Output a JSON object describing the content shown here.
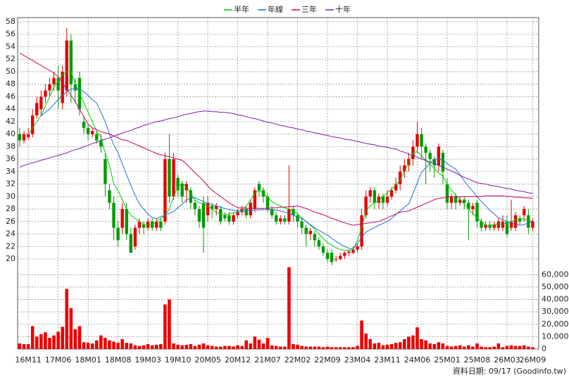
{
  "chart_data": {
    "type": "candlestick",
    "grid": true,
    "categories": [
      null,
      null,
      "16M11",
      null,
      null,
      null,
      null,
      null,
      null,
      "17M06",
      null,
      null,
      null,
      null,
      null,
      null,
      "18M01",
      null,
      null,
      null,
      null,
      null,
      null,
      "18M08",
      null,
      null,
      null,
      null,
      null,
      null,
      "19M03",
      null,
      null,
      null,
      null,
      null,
      null,
      "19M10",
      null,
      null,
      null,
      null,
      null,
      null,
      "20M05",
      null,
      null,
      null,
      null,
      null,
      null,
      "20M12",
      null,
      null,
      null,
      null,
      null,
      null,
      "21M07",
      null,
      null,
      null,
      null,
      null,
      null,
      "22M02",
      null,
      null,
      null,
      null,
      null,
      null,
      "22M09",
      null,
      null,
      null,
      null,
      null,
      null,
      "23M04",
      null,
      null,
      null,
      null,
      null,
      null,
      "23M11",
      null,
      null,
      null,
      null,
      null,
      null,
      "24M06",
      null,
      null,
      null,
      null,
      null,
      null,
      "25M01",
      null,
      null,
      null,
      null,
      null,
      null,
      "25M08",
      null,
      null,
      null,
      null,
      null,
      null,
      "26M03",
      null,
      null,
      null,
      null,
      null,
      "26M09"
    ],
    "up_color": "#e60000",
    "down_color": "#009a00",
    "open": [
      40,
      39,
      39.5,
      40,
      43,
      44,
      46,
      47,
      48,
      49,
      45,
      47,
      55,
      48,
      49,
      42,
      41,
      40,
      40,
      39,
      36,
      31,
      29,
      25,
      25,
      28,
      24,
      22,
      25,
      25.5,
      25,
      26,
      25,
      26,
      26,
      36,
      30,
      33,
      32,
      31,
      31,
      29,
      28,
      29,
      27,
      28.5,
      28,
      28,
      27,
      27,
      26,
      27,
      27.5,
      28,
      27,
      28,
      32,
      31,
      30,
      28,
      27,
      26,
      26.5,
      26,
      28,
      27,
      26,
      25,
      24,
      24,
      23,
      22,
      21,
      21,
      20,
      20,
      20.5,
      21,
      21,
      21.5,
      22,
      27,
      30,
      31,
      29,
      30,
      29,
      30,
      31,
      32,
      34,
      35,
      36,
      38,
      40,
      38,
      37,
      36,
      35,
      37,
      32,
      29,
      30,
      29,
      29.5,
      29,
      28,
      29,
      26,
      25,
      25.5,
      25,
      25,
      25,
      26,
      25,
      25,
      26.5,
      27,
      27,
      25
    ],
    "high": [
      41,
      40.5,
      41,
      44,
      46,
      47,
      48,
      49,
      50,
      51,
      51,
      57,
      56,
      49,
      50,
      43,
      41.5,
      41,
      40.5,
      40,
      37,
      32,
      30,
      26,
      29,
      29,
      25,
      25.5,
      26.5,
      26,
      26.5,
      26.5,
      26.5,
      26.5,
      37,
      40,
      37,
      33.5,
      32.5,
      32.5,
      31.5,
      29.5,
      28.5,
      30,
      30,
      29,
      29,
      28.5,
      27.5,
      27.5,
      27.5,
      28,
      28.5,
      28.5,
      29.5,
      31.5,
      32.5,
      31.5,
      30.5,
      28.5,
      27.5,
      27,
      27,
      35,
      28.5,
      27.5,
      26.5,
      25.5,
      25,
      24.5,
      23.5,
      22.5,
      21.5,
      21.5,
      20.5,
      21,
      21.2,
      21.5,
      22,
      22.5,
      28,
      31,
      31.5,
      31.5,
      30.5,
      30.5,
      31,
      31.5,
      33,
      35,
      36,
      37,
      39,
      42,
      41,
      38.5,
      37.5,
      36.5,
      38.5,
      37.5,
      33,
      30.5,
      30.5,
      30,
      30,
      29.5,
      29,
      29.5,
      26.5,
      26,
      26,
      26,
      26.5,
      27,
      27,
      29.5,
      27.5,
      27,
      28.5,
      28,
      26.5
    ],
    "low": [
      38,
      38.5,
      39,
      39.5,
      42.5,
      43,
      45,
      46,
      47,
      44,
      44,
      46,
      45,
      45,
      43,
      40,
      39,
      39.5,
      38.5,
      37,
      30,
      28,
      23,
      22,
      24,
      23,
      21,
      21.5,
      24,
      24,
      24.5,
      24.5,
      24.5,
      24.5,
      25.5,
      29,
      29.5,
      30,
      29,
      29,
      28,
      27,
      25,
      21,
      26,
      26.5,
      27,
      25.5,
      26,
      25.5,
      25.5,
      26.5,
      27,
      26.5,
      26.5,
      27.5,
      30,
      29,
      27.5,
      26.5,
      25.5,
      25.5,
      25.5,
      25.5,
      26,
      25,
      24,
      22,
      23,
      22,
      21.5,
      20.5,
      19.5,
      19,
      19.5,
      19.8,
      20,
      20.5,
      20.8,
      21,
      21.5,
      26.5,
      29,
      28,
      28,
      28,
      28.5,
      29.5,
      30.5,
      31,
      33,
      34,
      35,
      37,
      36,
      32,
      34,
      33,
      34,
      32,
      28,
      28,
      28,
      28.5,
      28,
      23,
      27,
      25,
      24.5,
      24.5,
      24.5,
      24.5,
      24.5,
      24.5,
      23.5,
      24.5,
      24.5,
      25.5,
      26,
      24,
      24.5
    ],
    "close": [
      39,
      40,
      40,
      43,
      45,
      46,
      47,
      48,
      49,
      47,
      50,
      55,
      48,
      47,
      44,
      41,
      40,
      40.5,
      39,
      38,
      32,
      29,
      25,
      23,
      28,
      24,
      21,
      25,
      26,
      25,
      26,
      25,
      26,
      25,
      36,
      30,
      36,
      31,
      30,
      32,
      29,
      28,
      26,
      25,
      29,
      28,
      28.5,
      26,
      26.5,
      26,
      27,
      27.5,
      28,
      27,
      29,
      31,
      31,
      30,
      28,
      27,
      26,
      26.5,
      26,
      28,
      27,
      26,
      25,
      24,
      24.5,
      23,
      22,
      21,
      20,
      19.5,
      20,
      20.5,
      21,
      21.2,
      21.5,
      22,
      27,
      30,
      31,
      29,
      30,
      29,
      30,
      31,
      32,
      34,
      35,
      36,
      38,
      40,
      38,
      37,
      36,
      35,
      38,
      34,
      29,
      30,
      29,
      29.5,
      29,
      28,
      28.5,
      26,
      25,
      25.5,
      25,
      25.5,
      26,
      26,
      24,
      26,
      27,
      26,
      28,
      25,
      26
    ],
    "ylim": [
      20,
      58
    ],
    "yticks": [
      20,
      22,
      24,
      26,
      28,
      30,
      32,
      34,
      36,
      38,
      40,
      42,
      44,
      46,
      48,
      50,
      52,
      54,
      56,
      58
    ],
    "series": [
      {
        "name": "半年",
        "color": "#00cc00",
        "values": [
          null,
          null,
          40,
          41,
          42,
          43,
          44.5,
          46,
          47.5,
          48.5,
          49.5,
          50,
          50,
          48,
          46.5,
          45,
          43.5,
          42,
          40.5,
          39.5,
          37,
          35,
          32,
          31,
          29.5,
          28,
          27,
          26.5,
          26,
          25.5,
          25.5,
          25.5,
          26,
          26.5,
          27,
          28,
          30,
          31.5,
          32.2,
          31.5,
          30.5,
          29.5,
          29,
          28.8,
          28.5,
          28,
          27.5,
          27.2,
          27.1,
          27.2,
          27.4,
          27.6,
          27.7,
          28.5,
          29.5,
          30.5,
          31,
          30.5,
          29.8,
          29.2,
          28.8,
          28.5,
          28.2,
          28,
          27.7,
          27.2,
          26.6,
          26,
          25.4,
          24.8,
          24,
          23.3,
          22.6,
          22.2,
          21.8,
          21.5,
          21.4,
          21.4,
          21.5,
          23,
          25,
          27.7,
          28.5,
          29,
          29.4,
          30,
          30.6,
          31.2,
          31.8,
          32.7,
          34,
          35.5,
          37,
          37.2,
          36.5,
          35.8,
          35.2,
          34.5,
          33.8,
          33.3,
          32,
          31,
          30.2,
          29.5,
          28.8,
          28,
          27.3,
          26.6,
          26,
          25.4,
          25.4,
          25.5,
          25.6,
          25.6,
          25.8,
          26,
          26.3,
          26.5,
          26.4,
          26.2,
          26
        ]
      },
      {
        "name": "年線",
        "color": "#1e6fe0",
        "values": [
          null,
          null,
          null,
          null,
          null,
          42.9,
          43.5,
          44,
          44.8,
          45.5,
          46.2,
          46.8,
          47.2,
          47.4,
          47.2,
          46.8,
          46.2,
          45.5,
          45,
          43.5,
          42,
          40,
          38.3,
          37,
          35.2,
          33.5,
          31.8,
          30.2,
          28.8,
          28,
          27.2,
          26.6,
          26.5,
          26.8,
          27,
          27.3,
          27.6,
          28.2,
          28.8,
          29.4,
          29.8,
          29.8,
          29.5,
          29.2,
          28.9,
          28.7,
          28.5,
          28.3,
          28.1,
          27.9,
          27.8,
          27.7,
          27.7,
          27.7,
          27.8,
          27.8,
          27.9,
          27.9,
          27.9,
          27.9,
          27.8,
          27.7,
          27.5,
          27.3,
          27,
          26.7,
          26.5,
          26,
          25.5,
          25,
          24.6,
          24.2,
          23.8,
          23.3,
          22.8,
          22.4,
          22,
          21.7,
          21.6,
          22.5,
          23.5,
          24.3,
          24.7,
          25,
          25.4,
          25.7,
          26,
          26.5,
          27.1,
          27.7,
          28.3,
          28.8,
          30.5,
          32.2,
          33.9,
          34.6,
          35.4,
          36,
          36.1,
          35.8,
          35.3,
          34.8,
          34.4,
          33.5,
          32.5,
          31.6,
          30.8,
          30,
          29.2,
          28.5,
          27.8,
          27.2,
          26.6,
          26.3,
          26,
          25.8,
          25.6,
          25.4,
          25.5,
          25.8,
          26
        ]
      },
      {
        "name": "三年",
        "color": "#cc0066",
        "values": [
          53,
          52.6,
          52.2,
          51.8,
          51.4,
          51,
          50.6,
          50.2,
          49.8,
          49.2,
          48.2,
          47.2,
          46.2,
          45.2,
          44,
          42.8,
          41.6,
          41,
          40.7,
          40.4,
          40.2,
          40,
          39.7,
          39.4,
          39.1,
          39,
          38.7,
          38.4,
          38.1,
          37.8,
          37.5,
          37.2,
          36.9,
          36.7,
          36.5,
          36.4,
          36.2,
          36,
          35.8,
          35.2,
          34.5,
          33.8,
          33.2,
          32.5,
          31.7,
          31,
          30.5,
          30,
          29.5,
          29,
          28.6,
          28.2,
          28.2,
          28.1,
          28.1,
          28.1,
          28.1,
          28.1,
          28.1,
          28.2,
          28.2,
          28.3,
          28.3,
          28.4,
          28.4,
          28.5,
          28.3,
          28.1,
          27.8,
          27.5,
          27.3,
          27.1,
          26.8,
          26.5,
          26.3,
          26,
          25.8,
          25.6,
          25.4,
          25.5,
          25.6,
          25.7,
          25.8,
          25.9,
          26,
          26.3,
          26.6,
          26.9,
          27.2,
          27.5,
          27.6,
          27.7,
          28,
          28.3,
          28.6,
          28.9,
          29.2,
          29.5,
          29.7,
          29.8,
          29.9,
          30,
          30,
          30,
          30,
          30,
          30,
          30,
          30,
          30.1,
          30.1,
          30.1,
          30.1,
          30.1,
          30,
          30,
          29.9,
          29.9,
          29.8,
          29.8,
          29.7
        ]
      },
      {
        "name": "十年",
        "color": "#7a1fa2",
        "values": [
          34.7,
          35,
          35.2,
          35.4,
          35.6,
          35.8,
          36,
          36.2,
          36.4,
          36.6,
          36.8,
          37,
          37.3,
          37.5,
          37.7,
          38,
          38.2,
          38.5,
          38.7,
          39,
          39.2,
          39.4,
          39.7,
          39.9,
          40.2,
          40.4,
          40.6,
          40.9,
          41.1,
          41.4,
          41.6,
          41.8,
          42,
          42.1,
          42.3,
          42.5,
          42.6,
          42.8,
          43,
          43.2,
          43.3,
          43.5,
          43.6,
          43.7,
          43.7,
          43.6,
          43.6,
          43.5,
          43.5,
          43.4,
          43.3,
          43.1,
          43,
          42.8,
          42.6,
          42.5,
          42.3,
          42.1,
          41.9,
          41.8,
          41.6,
          41.4,
          41.3,
          41.1,
          41,
          40.8,
          40.7,
          40.5,
          40.4,
          40.2,
          40.1,
          39.9,
          39.8,
          39.6,
          39.5,
          39.4,
          39.2,
          39.1,
          39,
          38.8,
          38.7,
          38.5,
          38.4,
          38.3,
          38.1,
          38,
          37.9,
          37.7,
          37.6,
          37.3,
          37.1,
          36.8,
          36.5,
          36.3,
          36,
          35.8,
          35.5,
          35.3,
          35,
          34.7,
          34.4,
          34.1,
          33.8,
          33.4,
          33.1,
          32.8,
          32.5,
          32.2,
          32.1,
          32,
          31.8,
          31.7,
          31.6,
          31.4,
          31.3,
          31.2,
          31,
          30.9,
          30.8,
          30.6,
          30.5
        ]
      }
    ],
    "volume": {
      "color": "#ee0000",
      "ylim": [
        0,
        67000
      ],
      "yticks": [
        0,
        {
          "value": 10000,
          "label": "10,000"
        },
        {
          "value": 20000,
          "label": "20,000"
        },
        {
          "value": 30000,
          "label": "30,000"
        },
        {
          "value": 40000,
          "label": "40,000"
        },
        {
          "value": 50000,
          "label": "50,000"
        },
        {
          "value": 60000,
          "label": "60,000"
        }
      ],
      "values": [
        4500,
        4000,
        4000,
        18500,
        10000,
        12000,
        13500,
        9000,
        11000,
        14000,
        18000,
        48500,
        33000,
        16000,
        18500,
        5500,
        5000,
        4500,
        7000,
        11000,
        9000,
        7000,
        6000,
        5000,
        8000,
        5000,
        4500,
        3000,
        2500,
        3000,
        4000,
        3000,
        3500,
        4000,
        36000,
        40000,
        4500,
        3500,
        3000,
        3500,
        4000,
        2500,
        3500,
        4500,
        3000,
        2500,
        2000,
        2000,
        2500,
        2500,
        2000,
        3000,
        2500,
        7000,
        4500,
        10000,
        7500,
        4500,
        9000,
        3000,
        2500,
        2000,
        2000,
        66000,
        4000,
        3500,
        2500,
        2000,
        2000,
        2000,
        2000,
        1500,
        2000,
        1500,
        1500,
        1500,
        1500,
        1500,
        1500,
        2500,
        23000,
        12500,
        8000,
        4500,
        5000,
        3000,
        3500,
        4000,
        5000,
        5500,
        8000,
        10000,
        11000,
        17500,
        8000,
        7000,
        4500,
        4000,
        5500,
        4500,
        2500,
        2000,
        2500,
        3000,
        2000,
        3000,
        2000,
        4500,
        2000,
        1500,
        1500,
        2000,
        4500,
        1500,
        2500,
        3000,
        2500,
        2500,
        3000,
        2000,
        1500
      ]
    },
    "footnote": "資料日期: 09/17 (Goodinfo.tw)"
  }
}
